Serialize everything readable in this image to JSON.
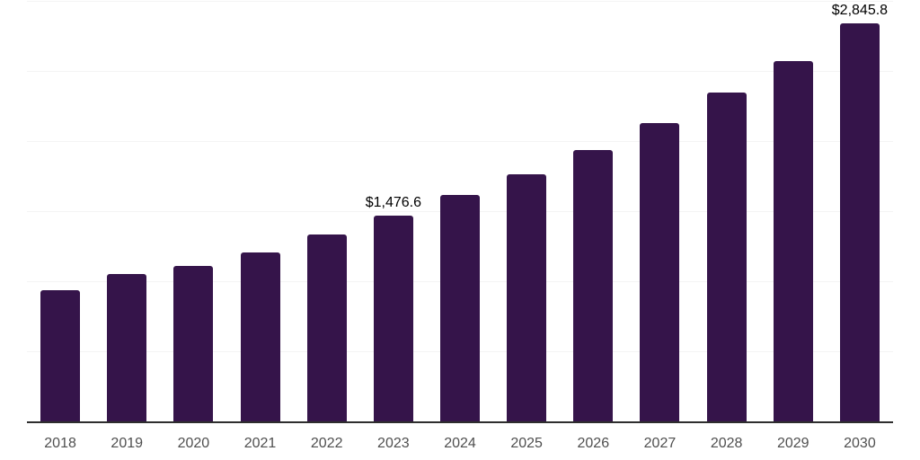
{
  "chart_data": {
    "type": "bar",
    "title": "",
    "xlabel": "",
    "ylabel": "",
    "categories": [
      "2018",
      "2019",
      "2020",
      "2021",
      "2022",
      "2023",
      "2024",
      "2025",
      "2026",
      "2027",
      "2028",
      "2029",
      "2030"
    ],
    "values": [
      945,
      1055,
      1118,
      1210,
      1340,
      1476.6,
      1620,
      1770,
      1940,
      2135,
      2350,
      2575,
      2845.8
    ],
    "data_labels": {
      "2023": "$1,476.6",
      "2030": "$2,845.8"
    },
    "ylim": [
      0,
      3000
    ],
    "grid_step": 500,
    "grid": true,
    "legend": false,
    "colors": {
      "bar": "#35144A",
      "axis_line": "#2e2e2e",
      "gridline": "#f4f4f4",
      "tick_label": "#4f4f4f",
      "data_label": "#000000",
      "background": "#ffffff"
    }
  }
}
